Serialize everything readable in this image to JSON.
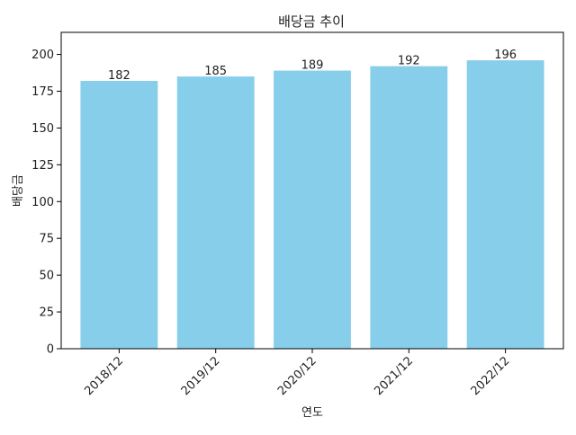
{
  "chart_data": {
    "type": "bar",
    "title": "배당금 추이",
    "xlabel": "연도",
    "ylabel": "배당금",
    "categories": [
      "2018/12",
      "2019/12",
      "2020/12",
      "2021/12",
      "2022/12"
    ],
    "values": [
      182,
      185,
      189,
      192,
      196
    ],
    "ylim": [
      0,
      215
    ],
    "yticks": [
      0,
      25,
      50,
      75,
      100,
      125,
      150,
      175,
      200
    ],
    "bar_color": "#87ceeb",
    "grid": false,
    "legend": "none",
    "xtick_rotation": 45
  }
}
